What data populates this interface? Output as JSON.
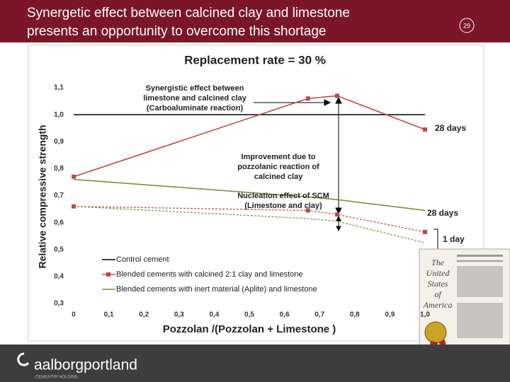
{
  "slide": {
    "title_lines": [
      "Synergetic effect between calcined clay and limestone",
      "presents an opportunity to overcome this shortage"
    ],
    "page_number": "29"
  },
  "chart_data": {
    "type": "line",
    "title": "Replacement rate = 30 %",
    "x_label": "Pozzolan /(Pozzolan + Limestone )",
    "y_label": "Relative compressive strength",
    "x": [
      0,
      0.667,
      0.75,
      1
    ],
    "series": [
      {
        "name": "Control cement",
        "color": "#000000",
        "values": [
          1.0,
          1.0,
          1.0,
          1.0
        ],
        "marker": "none",
        "dashed": false
      },
      {
        "name": "Blended cements with calcined 2:1 clay and limestone",
        "color": "#b94a4a",
        "values": [
          0.77,
          1.06,
          1.07,
          0.945
        ],
        "marker": "square",
        "dashed": false
      },
      {
        "color": "#b94a4a",
        "values": [
          0.66,
          0.645,
          0.63,
          0.565
        ],
        "marker": "square",
        "dashed": true
      },
      {
        "name": "Blended cements with inert material (Aplite) and limestone",
        "color": "#77933c",
        "values": [
          0.76,
          0.695,
          0.685,
          0.645
        ],
        "marker": "none",
        "dashed": false
      },
      {
        "color": "#77933c",
        "values": [
          0.66,
          0.615,
          0.605,
          0.525
        ],
        "marker": "none",
        "dashed": true
      }
    ],
    "xlim": [
      0,
      1
    ],
    "ylim": [
      0.3,
      1.1
    ],
    "xticks": [
      0,
      {
        "value": 0.1,
        "label": "0,1"
      },
      {
        "value": 0.2,
        "label": "0,2"
      },
      {
        "value": 0.3,
        "label": "0,3"
      },
      {
        "value": 0.4,
        "label": "0,4"
      },
      {
        "value": 0.5,
        "label": "0,5"
      },
      {
        "value": 0.6,
        "label": "0,6"
      },
      {
        "value": 0.7,
        "label": "0,7"
      },
      {
        "value": 0.8,
        "label": "0,8"
      },
      {
        "value": 0.9,
        "label": "0,9"
      },
      {
        "value": 1,
        "label": "1,0"
      }
    ],
    "yticks": [
      {
        "value": 0.3,
        "label": "0,3"
      },
      {
        "value": 0.4,
        "label": "0,4"
      },
      {
        "value": 0.5,
        "label": "0,5"
      },
      {
        "value": 0.6,
        "label": "0,6"
      },
      {
        "value": 0.7,
        "label": "0,7"
      },
      {
        "value": 0.8,
        "label": "0,8"
      },
      {
        "value": 0.9,
        "label": "0,9"
      },
      {
        "value": 1.0,
        "label": "1,0"
      },
      {
        "value": 1.1,
        "label": "1,1"
      }
    ],
    "grid": false,
    "annotations": [
      {
        "lines": [
          "Synergistic effect between",
          "limestone and calcined clay",
          "(Carboaluminate reaction)"
        ]
      },
      {
        "lines": [
          "Improvement due to",
          "pozzolanic reaction of",
          "calcined clay"
        ]
      },
      {
        "lines": [
          "Nucleation effect of SCM",
          "(Limestone and clay)"
        ]
      },
      {
        "lines": [
          "28 days"
        ]
      },
      {
        "lines": [
          "28 days"
        ]
      },
      {
        "lines": [
          "1 day"
        ]
      }
    ]
  },
  "patent": {
    "lines": [
      "The",
      "United",
      "States",
      "of",
      "America"
    ]
  },
  "footer": {
    "logo": "aalborgportland",
    "company": "CEMENTIR HOLDING"
  }
}
